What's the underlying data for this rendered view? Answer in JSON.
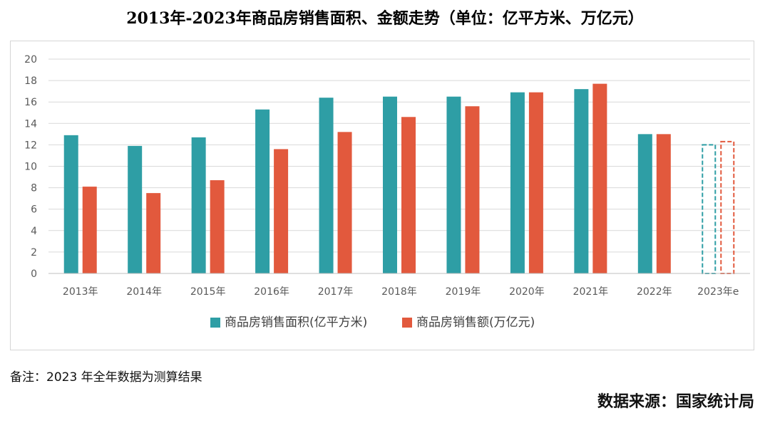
{
  "chart_data": {
    "type": "bar",
    "title": "2013年-2023年商品房销售面积、金额走势（单位：亿平方米、万亿元）",
    "categories": [
      "2013年",
      "2014年",
      "2015年",
      "2016年",
      "2017年",
      "2018年",
      "2019年",
      "2020年",
      "2021年",
      "2022年",
      "2023年e"
    ],
    "series": [
      {
        "name": "商品房销售面积(亿平方米)",
        "color": "#2e9ea5",
        "values": [
          12.9,
          11.9,
          12.7,
          15.3,
          16.4,
          16.5,
          16.5,
          16.9,
          17.2,
          13.0,
          12.0
        ]
      },
      {
        "name": "商品房销售额(万亿元)",
        "color": "#e2593d",
        "values": [
          8.1,
          7.5,
          8.7,
          11.6,
          13.2,
          14.6,
          15.6,
          16.9,
          17.7,
          13.0,
          12.3
        ]
      }
    ],
    "estimated_categories": [
      "2023年e"
    ],
    "yticks": [
      0,
      2,
      4,
      6,
      8,
      10,
      12,
      14,
      16,
      18,
      20
    ],
    "ylim": [
      0,
      20
    ],
    "grid": true,
    "legend": "bottom"
  },
  "note": "备注：2023 年全年数据为测算结果",
  "source": "数据来源：国家统计局"
}
